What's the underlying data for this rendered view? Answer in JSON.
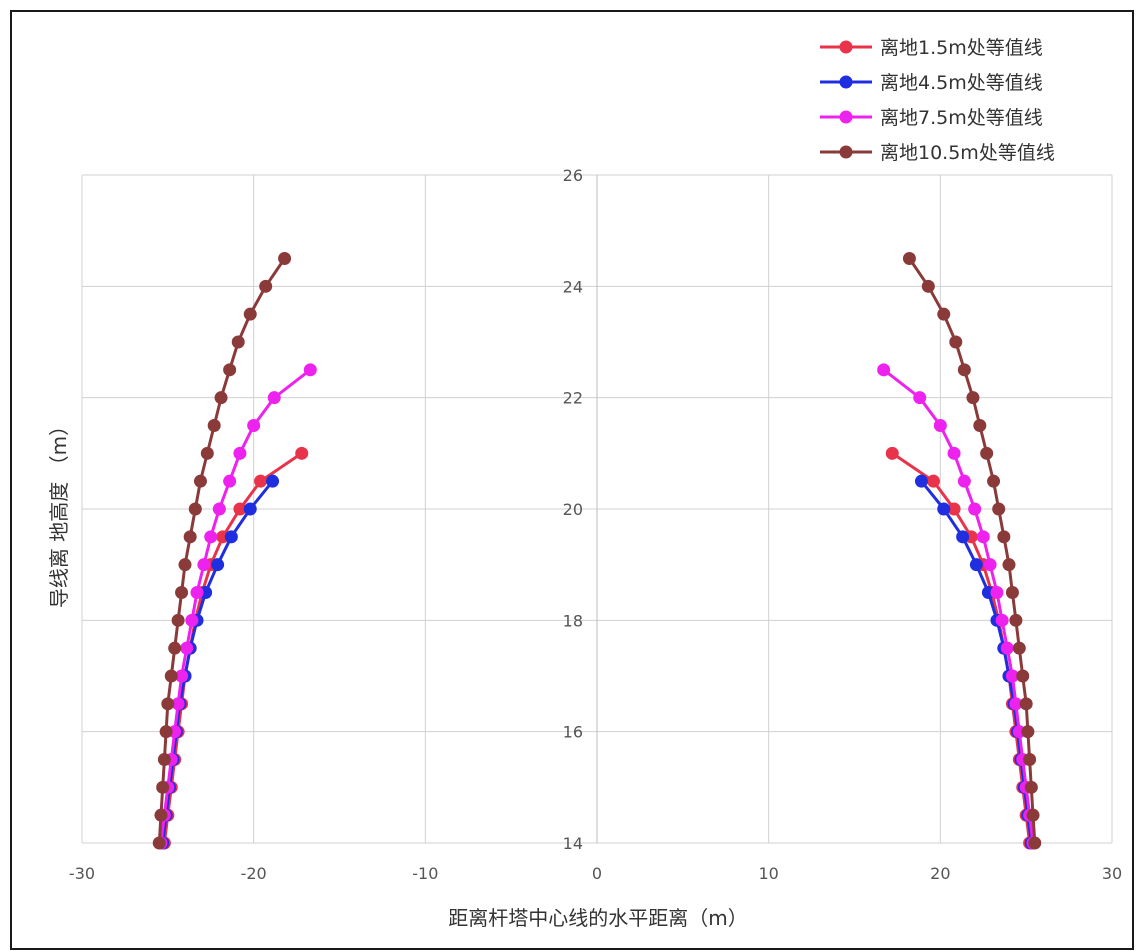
{
  "chart_data": {
    "type": "scatter",
    "title": "",
    "xlabel": "距离杆塔中心线的水平距离（m）",
    "ylabel": "导线离 地高度 （m）",
    "xlim": [
      -30,
      30
    ],
    "ylim": [
      14,
      26
    ],
    "x_ticks": [
      -30,
      -20,
      -10,
      0,
      10,
      20,
      30
    ],
    "y_ticks": [
      14,
      16,
      18,
      20,
      22,
      24,
      26
    ],
    "grid": true,
    "legend_position": "top-right",
    "series": [
      {
        "name": "离地1.5m处等值线",
        "color": "#e8334a",
        "left": {
          "x": [
            -25.2,
            -25.0,
            -24.8,
            -24.6,
            -24.4,
            -24.2,
            -24.0,
            -23.7,
            -23.4,
            -23.0,
            -22.5,
            -21.8,
            -20.8,
            -19.6,
            -17.2
          ],
          "y": [
            14.0,
            14.5,
            15.0,
            15.5,
            16.0,
            16.5,
            17.0,
            17.5,
            18.0,
            18.5,
            19.0,
            19.5,
            20.0,
            20.5,
            21.0
          ]
        },
        "right": {
          "x": [
            25.2,
            25.0,
            24.8,
            24.6,
            24.4,
            24.2,
            24.0,
            23.7,
            23.4,
            23.0,
            22.5,
            21.8,
            20.8,
            19.6,
            17.2
          ],
          "y": [
            14.0,
            14.5,
            15.0,
            15.5,
            16.0,
            16.5,
            17.0,
            17.5,
            18.0,
            18.5,
            19.0,
            19.5,
            20.0,
            20.5,
            21.0
          ]
        }
      },
      {
        "name": "离地4.5m处等值线",
        "color": "#1f2fe0",
        "left": {
          "x": [
            -25.3,
            -25.1,
            -24.9,
            -24.7,
            -24.5,
            -24.3,
            -24.0,
            -23.7,
            -23.3,
            -22.8,
            -22.1,
            -21.3,
            -20.2,
            -18.9
          ],
          "y": [
            14.0,
            14.5,
            15.0,
            15.5,
            16.0,
            16.5,
            17.0,
            17.5,
            18.0,
            18.5,
            19.0,
            19.5,
            20.0,
            20.5
          ]
        },
        "right": {
          "x": [
            25.3,
            25.1,
            24.9,
            24.7,
            24.5,
            24.3,
            24.0,
            23.7,
            23.3,
            22.8,
            22.1,
            21.3,
            20.2,
            18.9
          ],
          "y": [
            14.0,
            14.5,
            15.0,
            15.5,
            16.0,
            16.5,
            17.0,
            17.5,
            18.0,
            18.5,
            19.0,
            19.5,
            20.0,
            20.5
          ]
        }
      },
      {
        "name": "离地7.5m处等值线",
        "color": "#ee22ee",
        "left": {
          "x": [
            -25.4,
            -25.2,
            -25.0,
            -24.8,
            -24.6,
            -24.4,
            -24.2,
            -23.9,
            -23.6,
            -23.3,
            -22.9,
            -22.5,
            -22.0,
            -21.4,
            -20.8,
            -20.0,
            -18.8,
            -16.7
          ],
          "y": [
            14.0,
            14.5,
            15.0,
            15.5,
            16.0,
            16.5,
            17.0,
            17.5,
            18.0,
            18.5,
            19.0,
            19.5,
            20.0,
            20.5,
            21.0,
            21.5,
            22.0,
            22.5
          ]
        },
        "right": {
          "x": [
            25.4,
            25.2,
            25.0,
            24.8,
            24.6,
            24.4,
            24.2,
            23.9,
            23.6,
            23.3,
            22.9,
            22.5,
            22.0,
            21.4,
            20.8,
            20.0,
            18.8,
            16.7
          ],
          "y": [
            14.0,
            14.5,
            15.0,
            15.5,
            16.0,
            16.5,
            17.0,
            17.5,
            18.0,
            18.5,
            19.0,
            19.5,
            20.0,
            20.5,
            21.0,
            21.5,
            22.0,
            22.5
          ]
        }
      },
      {
        "name": "离地10.5m处等值线",
        "color": "#8b3a3a",
        "left": {
          "x": [
            -25.5,
            -25.4,
            -25.3,
            -25.2,
            -25.1,
            -25.0,
            -24.8,
            -24.6,
            -24.4,
            -24.2,
            -24.0,
            -23.7,
            -23.4,
            -23.1,
            -22.7,
            -22.3,
            -21.9,
            -21.4,
            -20.9,
            -20.2,
            -19.3,
            -18.2
          ],
          "y": [
            14.0,
            14.5,
            15.0,
            15.5,
            16.0,
            16.5,
            17.0,
            17.5,
            18.0,
            18.5,
            19.0,
            19.5,
            20.0,
            20.5,
            21.0,
            21.5,
            22.0,
            22.5,
            23.0,
            23.5,
            24.0,
            24.5
          ]
        },
        "right": {
          "x": [
            25.5,
            25.4,
            25.3,
            25.2,
            25.1,
            25.0,
            24.8,
            24.6,
            24.4,
            24.2,
            24.0,
            23.7,
            23.4,
            23.1,
            22.7,
            22.3,
            21.9,
            21.4,
            20.9,
            20.2,
            19.3,
            18.2
          ],
          "y": [
            14.0,
            14.5,
            15.0,
            15.5,
            16.0,
            16.5,
            17.0,
            17.5,
            18.0,
            18.5,
            19.0,
            19.5,
            20.0,
            20.5,
            21.0,
            21.5,
            22.0,
            22.5,
            23.0,
            23.5,
            24.0,
            24.5
          ]
        }
      }
    ]
  }
}
